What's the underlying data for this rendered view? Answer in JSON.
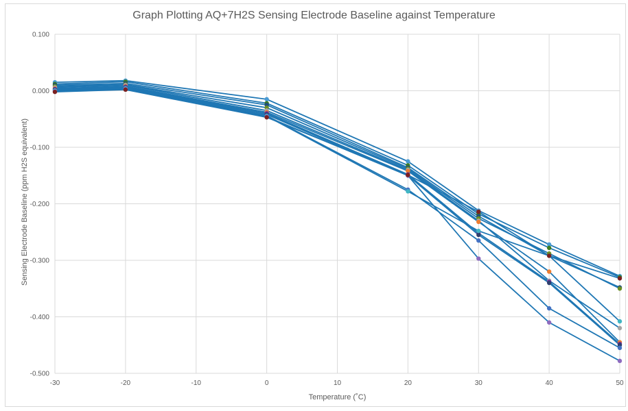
{
  "chart_data": {
    "type": "line",
    "title": "Graph Plotting AQ+7H2S Sensing Electrode Baseline against Temperature",
    "xlabel": "Temperature (˚C)",
    "ylabel": "Sensing Electrode Baseline (ppm H2S equivalent)",
    "xlim": [
      -30,
      50
    ],
    "ylim": [
      -0.5,
      0.1
    ],
    "x_ticks": [
      "-30",
      "-20",
      "-10",
      "0",
      "10",
      "20",
      "30",
      "40",
      "50"
    ],
    "y_ticks": [
      "0.100",
      "0.000",
      "-0.100",
      "-0.200",
      "-0.300",
      "-0.400",
      "-0.500"
    ],
    "grid": true,
    "legend": "none",
    "line_color": "#1f77b4",
    "x": [
      -30,
      -20,
      0,
      20,
      30,
      40,
      50
    ],
    "series": [
      {
        "marker_color": "#4a9bd4",
        "values": [
          0.015,
          0.018,
          -0.015,
          -0.125,
          -0.212,
          -0.272,
          -0.328
        ]
      },
      {
        "marker_color": "#3c7d22",
        "values": [
          0.012,
          0.016,
          -0.022,
          -0.132,
          -0.218,
          -0.278,
          -0.33
        ]
      },
      {
        "marker_color": "#1f4e79",
        "values": [
          0.01,
          0.013,
          -0.025,
          -0.136,
          -0.222,
          -0.292,
          -0.348
        ]
      },
      {
        "marker_color": "#6b8e23",
        "values": [
          0.008,
          0.011,
          -0.03,
          -0.138,
          -0.226,
          -0.288,
          -0.35
        ]
      },
      {
        "marker_color": "#a5a5a5",
        "values": [
          0.006,
          0.01,
          -0.035,
          -0.14,
          -0.23,
          -0.336,
          -0.42
        ]
      },
      {
        "marker_color": "#ed7d31",
        "values": [
          0.004,
          0.008,
          -0.038,
          -0.142,
          -0.232,
          -0.32,
          -0.445
        ]
      },
      {
        "marker_color": "#7030a0",
        "values": [
          0.003,
          0.007,
          -0.04,
          -0.148,
          -0.252,
          -0.338,
          -0.448
        ]
      },
      {
        "marker_color": "#2e3f6e",
        "values": [
          0.002,
          0.006,
          -0.042,
          -0.15,
          -0.255,
          -0.34,
          -0.45
        ]
      },
      {
        "marker_color": "#4472c4",
        "values": [
          0.001,
          0.005,
          -0.044,
          -0.175,
          -0.265,
          -0.385,
          -0.455
        ]
      },
      {
        "marker_color": "#41b6c4",
        "values": [
          0.0,
          0.004,
          -0.045,
          -0.178,
          -0.248,
          -0.292,
          -0.408
        ]
      },
      {
        "marker_color": "#8e6bbf",
        "values": [
          -0.001,
          0.003,
          -0.046,
          -0.15,
          -0.297,
          -0.41,
          -0.478
        ]
      },
      {
        "marker_color": "#7b2020",
        "values": [
          -0.002,
          0.002,
          -0.047,
          -0.149,
          -0.214,
          -0.292,
          -0.332
        ]
      }
    ]
  }
}
